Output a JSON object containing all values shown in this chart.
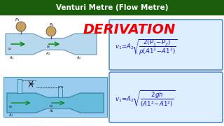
{
  "title_bar_text": "Venturi Metre (Flow Metre)",
  "title_bar_bg": "#1a5c0a",
  "title_bar_fg": "#ffffff",
  "derivation_text": "DERIVATION",
  "derivation_color": "#ee0000",
  "bg_color": "#ffffff",
  "formula_color": "#1111cc",
  "formula_box_bg": "#ddeeff",
  "formula_box_edge": "#5588cc",
  "pipe_color": "#b8d8ee",
  "pipe_edge": "#6699bb",
  "gauge_color": "#c8a060",
  "fluid_color": "#66bbdd",
  "fluid_bg": "#99ccee"
}
